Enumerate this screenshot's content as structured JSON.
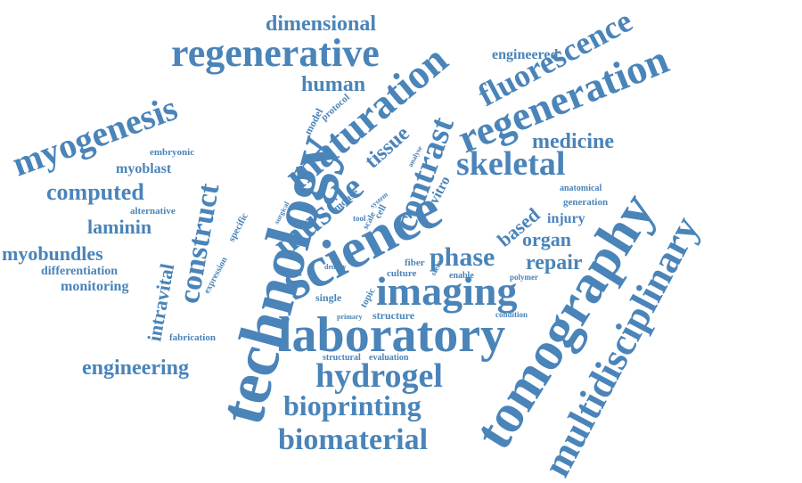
{
  "word_cloud": {
    "color": "#4a84b9",
    "words": {
      "technology": "technology",
      "tomography": "tomography",
      "multidisciplinary": "multidisciplinary",
      "science": "science",
      "laboratory": "laboratory",
      "regeneration": "regeneration",
      "maturation": "maturation",
      "fluorescence": "fluorescence",
      "regenerative": "regenerative",
      "imaging": "imaging",
      "muscle": "muscle",
      "myogenesis": "myogenesis",
      "construct": "construct",
      "contrast": "contrast",
      "skeletal": "skeletal",
      "hydrogel": "hydrogel",
      "biomaterial": "biomaterial",
      "bioprinting": "bioprinting",
      "dimensional": "dimensional",
      "computed": "computed",
      "engineering": "engineering",
      "medicine": "medicine",
      "human": "human",
      "myobundles": "myobundles",
      "laminin": "laminin",
      "tissue": "tissue",
      "phase": "phase",
      "repair": "repair",
      "organ": "organ",
      "based": "based",
      "intravital": "intravital",
      "myoblast": "myoblast",
      "engineered": "engineered",
      "injury": "injury",
      "differentiation": "differentiation",
      "monitoring": "monitoring",
      "embryonic": "embryonic",
      "alternative": "alternative",
      "expression": "expression",
      "specific": "specific",
      "mouse": "mouse",
      "model": "model",
      "protocol": "protocol",
      "vitro": "vitro",
      "analyse": "analyse",
      "anatomical": "anatomical",
      "generation": "generation",
      "structure": "structure",
      "single": "single",
      "fabrication": "fabrication",
      "structural": "structural",
      "evaluation": "evaluation",
      "topic": "topic",
      "culture": "culture",
      "fiber": "fiber",
      "stem": "stem",
      "enable": "enable",
      "polymer": "polymer",
      "condition": "condition",
      "primary": "primary",
      "density": "density",
      "surgical": "surgical",
      "tool": "tool",
      "scale": "scale",
      "cell": "cell",
      "system": "system"
    }
  }
}
